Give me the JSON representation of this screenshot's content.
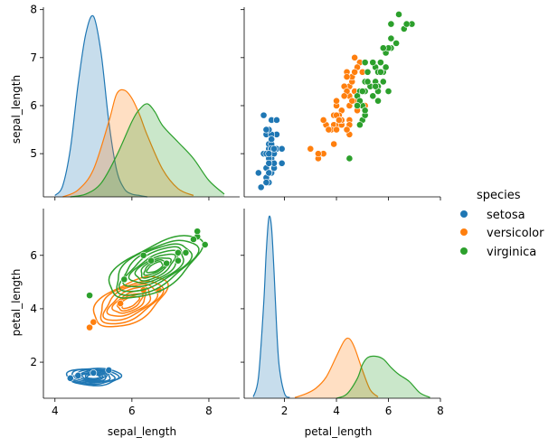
{
  "chart_data": {
    "type": "scatter",
    "title": "",
    "variables": [
      "sepal_length",
      "petal_length"
    ],
    "legend": {
      "title": "species",
      "location": "right",
      "entries": [
        {
          "name": "setosa",
          "color": "#1f77b4"
        },
        {
          "name": "versicolor",
          "color": "#ff7f0e"
        },
        {
          "name": "virginica",
          "color": "#2ca02c"
        }
      ]
    },
    "axes": {
      "sepal_length": {
        "label": "sepal_length",
        "range": [
          3.7,
          8.8
        ],
        "ticks": [
          4,
          6,
          8
        ],
        "row_range": [
          4.1,
          8.05
        ],
        "row_ticks": [
          5,
          6,
          7,
          8
        ]
      },
      "petal_length": {
        "label": "petal_length",
        "range": [
          0.45,
          8.0
        ],
        "ticks": [
          2,
          4,
          6,
          8
        ],
        "row_range": [
          0.65,
          7.75
        ],
        "row_ticks": [
          2,
          4,
          6
        ]
      }
    },
    "panels": {
      "sepal_length_density": {
        "type": "kde",
        "series": [
          {
            "name": "setosa",
            "color": "#1f77b4",
            "x": [
              4.0,
              4.2,
              4.4,
              4.6,
              4.8,
              5.0,
              5.2,
              5.4,
              5.6,
              5.8,
              6.0,
              6.2,
              6.4
            ],
            "density": [
              0.01,
              0.08,
              0.35,
              0.82,
              1.19,
              1.32,
              1.05,
              0.55,
              0.2,
              0.06,
              0.02,
              0.01,
              0.0
            ]
          },
          {
            "name": "versicolor",
            "color": "#ff7f0e",
            "x": [
              4.2,
              4.6,
              5.0,
              5.4,
              5.6,
              5.8,
              6.0,
              6.2,
              6.4,
              6.8,
              7.2,
              7.6
            ],
            "density": [
              0.0,
              0.05,
              0.2,
              0.55,
              0.75,
              0.78,
              0.72,
              0.6,
              0.45,
              0.2,
              0.06,
              0.01
            ]
          },
          {
            "name": "virginica",
            "color": "#2ca02c",
            "x": [
              4.4,
              4.8,
              5.2,
              5.6,
              6.0,
              6.2,
              6.4,
              6.6,
              6.8,
              7.2,
              7.6,
              8.0,
              8.4
            ],
            "density": [
              0.0,
              0.02,
              0.1,
              0.3,
              0.55,
              0.64,
              0.68,
              0.62,
              0.52,
              0.4,
              0.28,
              0.12,
              0.02
            ]
          }
        ]
      },
      "petal_length_density": {
        "type": "kde",
        "series": [
          {
            "name": "setosa",
            "color": "#1f77b4",
            "x": [
              0.8,
              1.0,
              1.2,
              1.3,
              1.4,
              1.5,
              1.6,
              1.7,
              1.8,
              2.0,
              2.2
            ],
            "density": [
              0.02,
              0.3,
              1.35,
              2.1,
              2.58,
              2.45,
              1.8,
              1.0,
              0.45,
              0.07,
              0.01
            ]
          },
          {
            "name": "versicolor",
            "color": "#ff7f0e",
            "x": [
              2.4,
              2.8,
              3.2,
              3.6,
              4.0,
              4.3,
              4.5,
              4.7,
              5.0,
              5.3,
              5.6
            ],
            "density": [
              0.01,
              0.06,
              0.14,
              0.3,
              0.6,
              0.82,
              0.85,
              0.72,
              0.4,
              0.12,
              0.02
            ]
          },
          {
            "name": "virginica",
            "color": "#2ca02c",
            "x": [
              4.0,
              4.4,
              4.8,
              5.0,
              5.2,
              5.5,
              5.8,
              6.1,
              6.4,
              6.8,
              7.2,
              7.6
            ],
            "density": [
              0.0,
              0.06,
              0.28,
              0.48,
              0.58,
              0.6,
              0.56,
              0.44,
              0.34,
              0.24,
              0.08,
              0.01
            ]
          }
        ]
      },
      "scatter": {
        "type": "scatter",
        "x_variable": "petal_length",
        "y_variable": "sepal_length",
        "series": [
          {
            "name": "setosa",
            "color": "#1f77b4",
            "points": [
              [
                1.4,
                5.1
              ],
              [
                1.4,
                4.9
              ],
              [
                1.3,
                4.7
              ],
              [
                1.5,
                4.6
              ],
              [
                1.4,
                5.0
              ],
              [
                1.7,
                5.4
              ],
              [
                1.4,
                4.6
              ],
              [
                1.5,
                5.0
              ],
              [
                1.4,
                4.4
              ],
              [
                1.5,
                4.9
              ],
              [
                1.5,
                5.4
              ],
              [
                1.6,
                4.8
              ],
              [
                1.4,
                4.8
              ],
              [
                1.1,
                4.3
              ],
              [
                1.2,
                5.8
              ],
              [
                1.5,
                5.7
              ],
              [
                1.3,
                5.4
              ],
              [
                1.4,
                5.1
              ],
              [
                1.7,
                5.7
              ],
              [
                1.5,
                5.1
              ],
              [
                1.7,
                5.4
              ],
              [
                1.5,
                5.1
              ],
              [
                1.0,
                4.6
              ],
              [
                1.7,
                5.1
              ],
              [
                1.9,
                4.8
              ],
              [
                1.6,
                5.0
              ],
              [
                1.6,
                5.0
              ],
              [
                1.5,
                5.2
              ],
              [
                1.4,
                5.2
              ],
              [
                1.6,
                4.7
              ],
              [
                1.6,
                4.8
              ],
              [
                1.5,
                5.4
              ],
              [
                1.5,
                5.2
              ],
              [
                1.4,
                5.5
              ],
              [
                1.2,
                5.0
              ],
              [
                1.3,
                5.5
              ],
              [
                1.4,
                4.9
              ],
              [
                1.3,
                4.4
              ],
              [
                1.5,
                5.1
              ],
              [
                1.3,
                5.0
              ],
              [
                1.3,
                4.5
              ],
              [
                1.3,
                4.4
              ],
              [
                1.6,
                5.0
              ],
              [
                1.9,
                5.1
              ],
              [
                1.4,
                4.8
              ],
              [
                1.6,
                5.1
              ],
              [
                1.4,
                4.6
              ],
              [
                1.5,
                5.3
              ],
              [
                1.4,
                5.0
              ]
            ]
          },
          {
            "name": "versicolor",
            "color": "#ff7f0e",
            "points": [
              [
                4.7,
                7.0
              ],
              [
                4.5,
                6.4
              ],
              [
                4.9,
                6.9
              ],
              [
                4.0,
                5.5
              ],
              [
                4.6,
                6.5
              ],
              [
                4.5,
                5.7
              ],
              [
                4.7,
                6.3
              ],
              [
                3.3,
                4.9
              ],
              [
                4.6,
                6.6
              ],
              [
                3.9,
                5.2
              ],
              [
                3.5,
                5.0
              ],
              [
                4.2,
                5.9
              ],
              [
                4.0,
                6.0
              ],
              [
                4.7,
                6.1
              ],
              [
                3.6,
                5.6
              ],
              [
                4.4,
                6.7
              ],
              [
                4.5,
                5.6
              ],
              [
                4.1,
                5.8
              ],
              [
                4.5,
                6.2
              ],
              [
                3.9,
                5.6
              ],
              [
                4.8,
                5.9
              ],
              [
                4.0,
                6.1
              ],
              [
                4.9,
                6.3
              ],
              [
                4.7,
                6.1
              ],
              [
                4.3,
                6.4
              ],
              [
                4.4,
                6.6
              ],
              [
                4.8,
                6.8
              ],
              [
                5.0,
                6.7
              ],
              [
                4.5,
                6.0
              ],
              [
                3.5,
                5.7
              ],
              [
                3.8,
                5.5
              ],
              [
                3.7,
                5.5
              ],
              [
                3.9,
                5.8
              ],
              [
                5.1,
                6.0
              ],
              [
                4.5,
                5.4
              ],
              [
                4.5,
                6.0
              ],
              [
                4.7,
                6.7
              ],
              [
                4.4,
                6.3
              ],
              [
                4.1,
                5.6
              ],
              [
                4.0,
                5.5
              ],
              [
                4.4,
                5.5
              ],
              [
                4.6,
                6.1
              ],
              [
                4.0,
                5.8
              ],
              [
                3.3,
                5.0
              ],
              [
                4.2,
                5.6
              ],
              [
                4.2,
                5.7
              ],
              [
                4.2,
                5.7
              ],
              [
                4.3,
                6.2
              ],
              [
                3.0,
                5.1
              ],
              [
                4.1,
                5.7
              ]
            ]
          },
          {
            "name": "virginica",
            "color": "#2ca02c",
            "points": [
              [
                6.0,
                6.3
              ],
              [
                5.1,
                5.8
              ],
              [
                5.9,
                7.1
              ],
              [
                5.6,
                6.3
              ],
              [
                5.8,
                6.5
              ],
              [
                6.6,
                7.6
              ],
              [
                4.5,
                4.9
              ],
              [
                6.3,
                7.3
              ],
              [
                5.8,
                6.7
              ],
              [
                6.1,
                7.2
              ],
              [
                5.1,
                6.5
              ],
              [
                5.3,
                6.4
              ],
              [
                5.5,
                6.8
              ],
              [
                5.0,
                5.7
              ],
              [
                5.1,
                5.8
              ],
              [
                5.3,
                6.4
              ],
              [
                5.5,
                6.5
              ],
              [
                6.7,
                7.7
              ],
              [
                6.9,
                7.7
              ],
              [
                5.0,
                6.0
              ],
              [
                5.7,
                6.9
              ],
              [
                4.9,
                5.6
              ],
              [
                6.7,
                7.7
              ],
              [
                4.9,
                6.3
              ],
              [
                5.7,
                6.7
              ],
              [
                6.0,
                7.2
              ],
              [
                4.8,
                6.2
              ],
              [
                4.9,
                6.1
              ],
              [
                5.6,
                6.4
              ],
              [
                5.8,
                7.2
              ],
              [
                6.1,
                7.4
              ],
              [
                6.4,
                7.9
              ],
              [
                5.6,
                6.4
              ],
              [
                5.1,
                6.3
              ],
              [
                5.6,
                6.1
              ],
              [
                6.1,
                7.7
              ],
              [
                5.6,
                6.3
              ],
              [
                5.5,
                6.4
              ],
              [
                4.8,
                6.0
              ],
              [
                5.4,
                6.9
              ],
              [
                5.6,
                6.7
              ],
              [
                5.1,
                6.9
              ],
              [
                5.9,
                6.8
              ],
              [
                5.7,
                6.7
              ],
              [
                5.2,
                6.7
              ],
              [
                5.0,
                6.3
              ],
              [
                5.2,
                6.5
              ],
              [
                5.4,
                6.2
              ],
              [
                5.1,
                5.9
              ]
            ]
          }
        ]
      },
      "kde_2d": {
        "type": "kde_contour",
        "x_variable": "sepal_length",
        "y_variable": "petal_length",
        "series": [
          {
            "name": "setosa",
            "color": "#1f77b4",
            "center": [
              5.0,
              1.46
            ],
            "spread": [
              0.7,
              0.32
            ],
            "slope": 0.0,
            "levels": [
              1.0,
              0.88,
              0.76,
              0.64,
              0.52,
              0.42,
              0.32,
              0.24
            ],
            "points": [
              [
                4.4,
                1.4
              ],
              [
                4.6,
                1.5
              ],
              [
                5.0,
                1.6
              ],
              [
                5.4,
                1.7
              ]
            ]
          },
          {
            "name": "versicolor",
            "color": "#ff7f0e",
            "center": [
              5.95,
              4.25
            ],
            "spread": [
              0.95,
              0.78
            ],
            "slope": 0.55,
            "levels": [
              1.0,
              0.85,
              0.72,
              0.58,
              0.45,
              0.34,
              0.24
            ],
            "points": [
              [
                4.9,
                3.3
              ],
              [
                5.0,
                3.5
              ],
              [
                5.7,
                4.2
              ],
              [
                6.3,
                4.7
              ],
              [
                6.7,
                4.7
              ]
            ]
          },
          {
            "name": "virginica",
            "color": "#2ca02c",
            "center": [
              6.6,
              5.55
            ],
            "spread": [
              1.2,
              0.9
            ],
            "slope": 0.62,
            "levels": [
              1.0,
              0.88,
              0.76,
              0.64,
              0.52,
              0.42,
              0.32,
              0.24,
              0.17
            ],
            "points": [
              [
                4.9,
                4.5
              ],
              [
                6.3,
                6.0
              ],
              [
                6.9,
                5.7
              ],
              [
                7.2,
                6.1
              ],
              [
                7.4,
                6.1
              ],
              [
                7.7,
                6.7
              ],
              [
                7.7,
                6.9
              ],
              [
                7.9,
                6.4
              ],
              [
                7.6,
                6.6
              ],
              [
                5.8,
                5.1
              ],
              [
                6.5,
                5.8
              ],
              [
                7.2,
                5.8
              ]
            ]
          }
        ]
      }
    }
  }
}
